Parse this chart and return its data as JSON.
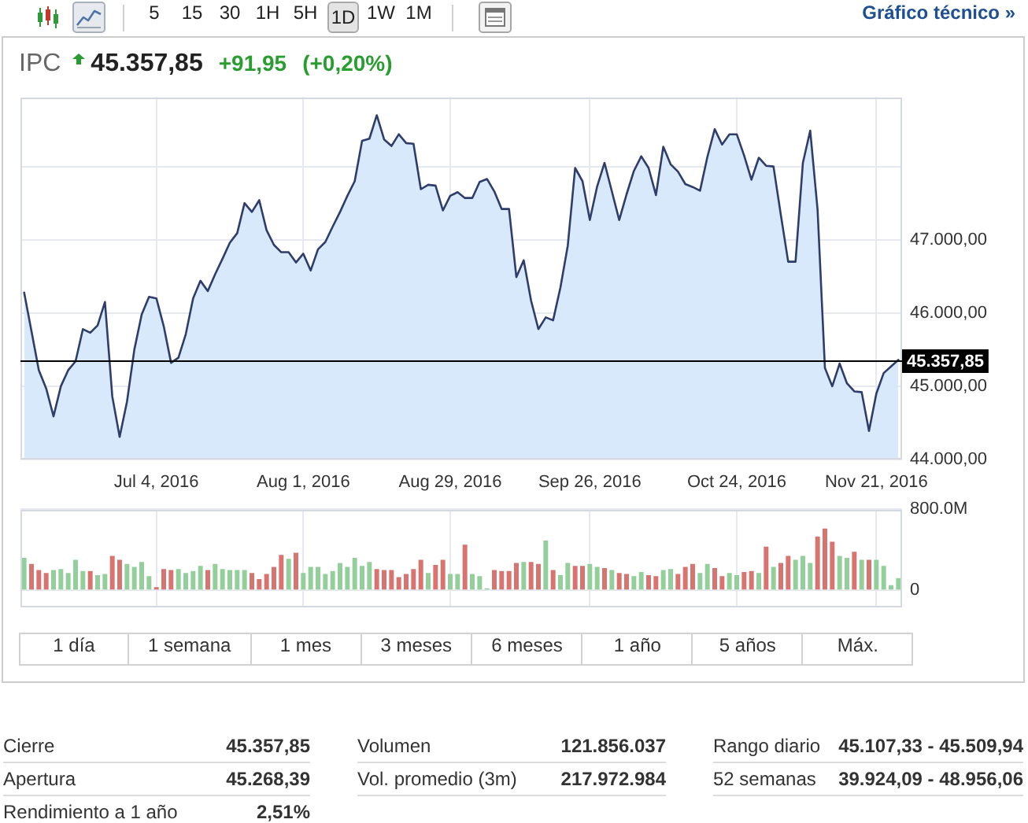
{
  "chart_data": [
    {
      "type": "other",
      "annotations": [
        "5",
        "15",
        "30",
        "1H",
        "5H",
        "1D",
        "1W",
        "1M",
        "Gráfico técnico »"
      ]
    },
    {
      "type": "area",
      "title": "IPC",
      "subtitle": "45.357,85",
      "annotations": [
        "+91,95",
        "(+0,20%)"
      ],
      "categories": [
        null,
        null,
        null,
        null,
        null,
        null,
        null,
        null,
        null,
        null,
        null,
        null,
        null,
        null,
        null,
        null,
        null,
        null,
        "Jul 4, 2016",
        null,
        null,
        null,
        null,
        null,
        null,
        null,
        null,
        null,
        null,
        null,
        null,
        null,
        null,
        null,
        null,
        null,
        null,
        null,
        "Aug 1, 2016",
        null,
        null,
        null,
        null,
        null,
        null,
        null,
        null,
        null,
        null,
        null,
        null,
        null,
        null,
        null,
        null,
        null,
        null,
        null,
        "Aug 29, 2016",
        null,
        null,
        null,
        null,
        null,
        null,
        null,
        null,
        null,
        null,
        null,
        null,
        null,
        null,
        null,
        null,
        null,
        null,
        "Sep 26, 2016",
        null,
        null,
        null,
        null,
        null,
        null,
        null,
        null,
        null,
        null,
        null,
        null,
        null,
        null,
        null,
        null,
        null,
        null,
        null,
        "Oct 24, 2016",
        null,
        null,
        null,
        null,
        null,
        null,
        null,
        null,
        null,
        null,
        null,
        null,
        null,
        null,
        null,
        null,
        null,
        null,
        "Nov 21, 2016",
        null,
        null,
        null
      ],
      "values": [
        46280,
        45750,
        45220,
        44970,
        44590,
        45000,
        45220,
        45340,
        45780,
        45730,
        45830,
        46150,
        44860,
        44310,
        44790,
        45500,
        45980,
        46220,
        46200,
        45820,
        45320,
        45390,
        45710,
        46200,
        46440,
        46300,
        46530,
        46740,
        46960,
        47090,
        47500,
        47380,
        47540,
        47130,
        46930,
        46830,
        46830,
        46690,
        46810,
        46580,
        46870,
        46970,
        47180,
        47380,
        47600,
        47800,
        48350,
        48380,
        48700,
        48370,
        48280,
        48440,
        48320,
        48310,
        47690,
        47750,
        47740,
        47400,
        47600,
        47650,
        47570,
        47570,
        47790,
        47830,
        47660,
        47420,
        47420,
        46490,
        46720,
        46170,
        45780,
        45940,
        45900,
        46350,
        46920,
        47980,
        47800,
        47270,
        47730,
        48050,
        47660,
        47270,
        47620,
        47940,
        48140,
        47980,
        47610,
        48270,
        48030,
        47930,
        47760,
        47720,
        47670,
        48130,
        48510,
        48300,
        48440,
        48440,
        48150,
        47820,
        48120,
        48010,
        48000,
        47340,
        46700,
        46700,
        48050,
        48490,
        47410,
        45250,
        45000,
        45310,
        45040,
        44930,
        44920,
        44390,
        44900,
        45180,
        45270,
        45360
      ],
      "color": "#2f3d6b",
      "ylim": [
        44000,
        48950
      ],
      "yticks": [
        {
          "value": 44000,
          "label": "44.000,00"
        },
        {
          "value": 45000,
          "label": "45.000,00"
        },
        {
          "value": 46000,
          "label": "46.000,00"
        },
        {
          "value": 47000,
          "label": "47.000,00"
        },
        {
          "value": 48000,
          "label": null
        }
      ],
      "grid": true,
      "ref_lines": [
        {
          "axis": "y",
          "value": 45357.85,
          "label": "45.357,85"
        }
      ]
    },
    {
      "type": "bar",
      "categories": [
        null,
        null,
        null,
        null,
        null,
        null,
        null,
        null,
        null,
        null,
        null,
        null,
        null,
        null,
        null,
        null,
        null,
        null,
        null,
        null,
        null,
        null,
        null,
        null,
        null,
        null,
        null,
        null,
        null,
        null,
        null,
        null,
        null,
        null,
        null,
        null,
        null,
        null,
        null,
        null,
        null,
        null,
        null,
        null,
        null,
        null,
        null,
        null,
        null,
        null,
        null,
        null,
        null,
        null,
        null,
        null,
        null,
        null,
        null,
        null,
        null,
        null,
        null,
        null,
        null,
        null,
        null,
        null,
        null,
        null,
        null,
        null,
        null,
        null,
        null,
        null,
        null,
        null,
        null,
        null,
        null,
        null,
        null,
        null,
        null,
        null,
        null,
        null,
        null,
        null,
        null,
        null,
        null,
        null,
        null,
        null,
        null,
        null,
        null,
        null,
        null,
        null,
        null,
        null,
        null,
        null,
        null,
        null,
        null,
        null,
        null,
        null,
        null,
        null,
        null,
        null,
        null,
        null,
        null,
        null
      ],
      "values": [
        320,
        260,
        200,
        170,
        200,
        210,
        170,
        300,
        190,
        190,
        150,
        160,
        340,
        300,
        260,
        230,
        280,
        140,
        30,
        210,
        200,
        210,
        170,
        190,
        240,
        200,
        260,
        210,
        200,
        200,
        200,
        170,
        110,
        160,
        230,
        350,
        310,
        370,
        170,
        230,
        230,
        160,
        190,
        270,
        230,
        320,
        240,
        280,
        210,
        200,
        200,
        130,
        160,
        210,
        300,
        170,
        250,
        300,
        160,
        160,
        450,
        160,
        140,
        20,
        200,
        190,
        190,
        270,
        280,
        280,
        260,
        490,
        200,
        150,
        270,
        240,
        240,
        260,
        230,
        220,
        200,
        170,
        160,
        140,
        180,
        150,
        140,
        200,
        210,
        160,
        230,
        260,
        170,
        260,
        220,
        140,
        170,
        150,
        180,
        190,
        170,
        430,
        230,
        270,
        340,
        300,
        340,
        270,
        530,
        610,
        480,
        340,
        320,
        380,
        300,
        300,
        300,
        240,
        50,
        120
      ],
      "colors": [
        "#93cf9a",
        "#d77470",
        "#d77470",
        "#d77470",
        "#93cf9a",
        "#93cf9a",
        "#93cf9a",
        "#93cf9a",
        "#93cf9a",
        "#d77470",
        "#93cf9a",
        "#93cf9a",
        "#d77470",
        "#d77470",
        "#93cf9a",
        "#93cf9a",
        "#93cf9a",
        "#93cf9a",
        "#d77470",
        "#d77470",
        "#d77470",
        "#93cf9a",
        "#93cf9a",
        "#93cf9a",
        "#93cf9a",
        "#d77470",
        "#93cf9a",
        "#93cf9a",
        "#93cf9a",
        "#93cf9a",
        "#93cf9a",
        "#d77470",
        "#d77470",
        "#d77470",
        "#d77470",
        "#d77470",
        "#93cf9a",
        "#d77470",
        "#93cf9a",
        "#93cf9a",
        "#93cf9a",
        "#93cf9a",
        "#93cf9a",
        "#93cf9a",
        "#93cf9a",
        "#93cf9a",
        "#93cf9a",
        "#93cf9a",
        "#d77470",
        "#d77470",
        "#d77470",
        "#d77470",
        "#d77470",
        "#d77470",
        "#d77470",
        "#93cf9a",
        "#d77470",
        "#d77470",
        "#93cf9a",
        "#93cf9a",
        "#d77470",
        "#93cf9a",
        "#93cf9a",
        "#93cf9a",
        "#d77470",
        "#d77470",
        "#d77470",
        "#d77470",
        "#93cf9a",
        "#d77470",
        "#d77470",
        "#93cf9a",
        "#d77470",
        "#93cf9a",
        "#93cf9a",
        "#d77470",
        "#d77470",
        "#93cf9a",
        "#93cf9a",
        "#d77470",
        "#93cf9a",
        "#d77470",
        "#d77470",
        "#93cf9a",
        "#93cf9a",
        "#d77470",
        "#d77470",
        "#93cf9a",
        "#93cf9a",
        "#d77470",
        "#d77470",
        "#d77470",
        "#93cf9a",
        "#93cf9a",
        "#d77470",
        "#d77470",
        "#93cf9a",
        "#93cf9a",
        "#d77470",
        "#d77470",
        "#93cf9a",
        "#d77470",
        "#93cf9a",
        "#d77470",
        "#d77470",
        "#93cf9a",
        "#93cf9a",
        "#93cf9a",
        "#d77470",
        "#d77470",
        "#d77470",
        "#93cf9a",
        "#93cf9a",
        "#d77470",
        "#93cf9a",
        "#d77470",
        "#93cf9a",
        "#93cf9a",
        "#93cf9a",
        "#93cf9a"
      ],
      "ylim": [
        -160,
        800
      ],
      "yticks": [
        0,
        {
          "value": 800,
          "label": "800.0M"
        }
      ],
      "grid": true
    },
    {
      "type": "other",
      "annotations": [
        "1 día",
        "1 semana",
        "1 mes",
        "3 meses",
        "6 meses",
        "1 año",
        "5 años",
        "Máx."
      ]
    },
    {
      "type": "other",
      "annotations": [
        "Cierre",
        "45.357,85",
        "Volumen",
        "121.856.037",
        "Rango diario",
        "45.107,33 - 45.509,94",
        "Apertura",
        "45.268,39",
        "Vol. promedio (3m)",
        "217.972.984",
        "52 semanas",
        "39.924,09 - 48.956,06",
        "Rendimiento a 1 año",
        "2,51%"
      ]
    }
  ]
}
